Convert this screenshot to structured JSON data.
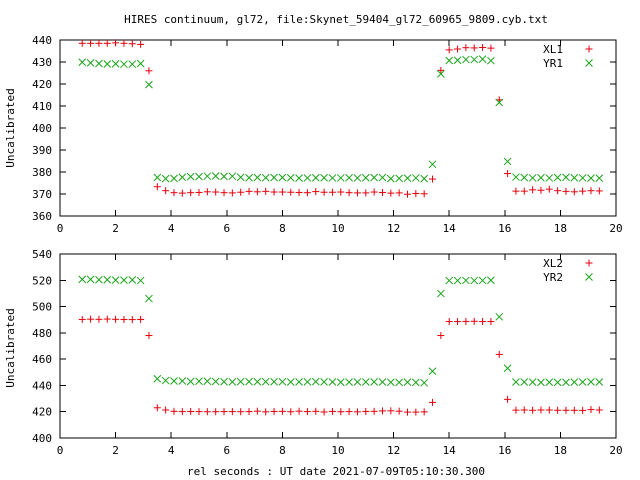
{
  "title": "HIRES continuum, gl72, file:Skynet_59404_gl72_60965_9809.cyb.txt",
  "xlabel": "rel seconds : UT date 2021-07-09T05:10:30.300",
  "colors": {
    "red": "#e8000b",
    "green": "#1aa51a"
  },
  "chart_data": [
    {
      "type": "scatter",
      "title": "HIRES continuum, gl72, file:Skynet_59404_gl72_60965_9809.cyb.txt",
      "xlabel": "",
      "ylabel": "Uncalibrated",
      "xlim": [
        0,
        20
      ],
      "ylim": [
        360,
        440
      ],
      "xticks": [
        0,
        2,
        4,
        6,
        8,
        10,
        12,
        14,
        16,
        18,
        20
      ],
      "yticks": [
        360,
        370,
        380,
        390,
        400,
        410,
        420,
        430,
        440
      ],
      "grid": false,
      "legend": "top-right",
      "series": [
        {
          "name": "XL1",
          "marker": "plus",
          "color": "#e8000b",
          "x": [
            0.8,
            1.1,
            1.4,
            1.7,
            2.0,
            2.3,
            2.6,
            2.9,
            3.2,
            3.5,
            3.8,
            4.1,
            4.4,
            4.7,
            5.0,
            5.3,
            5.6,
            5.9,
            6.2,
            6.5,
            6.8,
            7.1,
            7.4,
            7.7,
            8.0,
            8.3,
            8.6,
            8.9,
            9.2,
            9.5,
            9.8,
            10.1,
            10.4,
            10.7,
            11.0,
            11.3,
            11.6,
            11.9,
            12.2,
            12.5,
            12.8,
            13.1,
            13.4,
            13.7,
            14.0,
            14.3,
            14.6,
            14.9,
            15.2,
            15.5,
            15.8,
            16.1,
            16.4,
            16.7,
            17.0,
            17.3,
            17.6,
            17.9,
            18.2,
            18.5,
            18.8,
            19.1,
            19.4
          ],
          "y": [
            438.5,
            438.5,
            438.5,
            438.5,
            438.7,
            438.5,
            438.3,
            438.0,
            426.0,
            373.3,
            371.5,
            370.6,
            370.4,
            370.6,
            370.7,
            371.0,
            370.9,
            370.6,
            370.5,
            370.8,
            371.2,
            371.0,
            371.2,
            370.9,
            370.9,
            370.8,
            370.7,
            370.6,
            371.1,
            370.8,
            370.8,
            370.9,
            370.6,
            370.5,
            370.5,
            370.9,
            370.7,
            370.4,
            370.5,
            369.9,
            370.2,
            370.1,
            376.8,
            426.2,
            435.5,
            435.9,
            436.5,
            436.4,
            436.6,
            436.3,
            412.8,
            379.3,
            371.3,
            371.3,
            371.9,
            371.7,
            372.2,
            371.5,
            371.2,
            371.0,
            371.3,
            371.5,
            371.4
          ]
        },
        {
          "name": "YR1",
          "marker": "cross",
          "color": "#1aa51a",
          "x": [
            0.8,
            1.1,
            1.4,
            1.7,
            2.0,
            2.3,
            2.6,
            2.9,
            3.2,
            3.5,
            3.8,
            4.1,
            4.4,
            4.7,
            5.0,
            5.3,
            5.6,
            5.9,
            6.2,
            6.5,
            6.8,
            7.1,
            7.4,
            7.7,
            8.0,
            8.3,
            8.6,
            8.9,
            9.2,
            9.5,
            9.8,
            10.1,
            10.4,
            10.7,
            11.0,
            11.3,
            11.6,
            11.9,
            12.2,
            12.5,
            12.8,
            13.1,
            13.4,
            13.7,
            14.0,
            14.3,
            14.6,
            14.9,
            15.2,
            15.5,
            15.8,
            16.1,
            16.4,
            16.7,
            17.0,
            17.3,
            17.6,
            17.9,
            18.2,
            18.5,
            18.8,
            19.1,
            19.4
          ],
          "y": [
            429.9,
            429.6,
            429.3,
            429.1,
            429.2,
            429.0,
            429.0,
            429.3,
            419.7,
            377.5,
            377.0,
            377.1,
            377.6,
            377.9,
            377.9,
            378.1,
            378.2,
            378.0,
            378.1,
            377.6,
            377.4,
            377.5,
            377.4,
            377.5,
            377.5,
            377.4,
            377.2,
            377.3,
            377.4,
            377.4,
            377.3,
            377.3,
            377.4,
            377.3,
            377.4,
            377.5,
            377.5,
            377.0,
            377.1,
            377.2,
            377.3,
            377.0,
            383.5,
            424.6,
            430.7,
            430.8,
            431.1,
            431.1,
            431.3,
            430.6,
            411.6,
            384.8,
            377.7,
            377.5,
            377.3,
            377.4,
            377.3,
            377.5,
            377.6,
            377.4,
            377.3,
            377.2,
            377.2
          ]
        }
      ]
    },
    {
      "type": "scatter",
      "title": "",
      "xlabel": "rel seconds : UT date 2021-07-09T05:10:30.300",
      "ylabel": "Uncalibrated",
      "xlim": [
        0,
        20
      ],
      "ylim": [
        400,
        540
      ],
      "xticks": [
        0,
        2,
        4,
        6,
        8,
        10,
        12,
        14,
        16,
        18,
        20
      ],
      "yticks": [
        400,
        420,
        440,
        460,
        480,
        500,
        520,
        540
      ],
      "grid": false,
      "legend": "top-right",
      "series": [
        {
          "name": "XL2",
          "marker": "plus",
          "color": "#e8000b",
          "x": [
            0.8,
            1.1,
            1.4,
            1.7,
            2.0,
            2.3,
            2.6,
            2.9,
            3.2,
            3.5,
            3.8,
            4.1,
            4.4,
            4.7,
            5.0,
            5.3,
            5.6,
            5.9,
            6.2,
            6.5,
            6.8,
            7.1,
            7.4,
            7.7,
            8.0,
            8.3,
            8.6,
            8.9,
            9.2,
            9.5,
            9.8,
            10.1,
            10.4,
            10.7,
            11.0,
            11.3,
            11.6,
            11.9,
            12.2,
            12.5,
            12.8,
            13.1,
            13.4,
            13.7,
            14.0,
            14.3,
            14.6,
            14.9,
            15.2,
            15.5,
            15.8,
            16.1,
            16.4,
            16.7,
            17.0,
            17.3,
            17.6,
            17.9,
            18.2,
            18.5,
            18.8,
            19.1,
            19.4
          ],
          "y": [
            490.2,
            490.4,
            490.3,
            490.5,
            490.3,
            490.2,
            490.1,
            490.2,
            478.0,
            423.0,
            421.3,
            420.3,
            420.1,
            420.2,
            420.1,
            420.0,
            420.0,
            420.1,
            420.1,
            420.0,
            420.1,
            420.4,
            419.9,
            420.2,
            420.3,
            420.0,
            420.4,
            420.1,
            420.3,
            419.8,
            420.2,
            420.0,
            420.1,
            419.9,
            420.2,
            420.3,
            420.6,
            420.7,
            420.4,
            419.7,
            419.7,
            419.9,
            427.1,
            478.0,
            488.6,
            488.6,
            488.7,
            488.8,
            488.6,
            488.6,
            463.6,
            429.4,
            421.2,
            421.3,
            421.1,
            421.3,
            421.3,
            421.1,
            421.1,
            421.1,
            421.0,
            421.6,
            421.3
          ]
        },
        {
          "name": "YR2",
          "marker": "cross",
          "color": "#1aa51a",
          "x": [
            0.8,
            1.1,
            1.4,
            1.7,
            2.0,
            2.3,
            2.6,
            2.9,
            3.2,
            3.5,
            3.8,
            4.1,
            4.4,
            4.7,
            5.0,
            5.3,
            5.6,
            5.9,
            6.2,
            6.5,
            6.8,
            7.1,
            7.4,
            7.7,
            8.0,
            8.3,
            8.6,
            8.9,
            9.2,
            9.5,
            9.8,
            10.1,
            10.4,
            10.7,
            11.0,
            11.3,
            11.6,
            11.9,
            12.2,
            12.5,
            12.8,
            13.1,
            13.4,
            13.7,
            14.0,
            14.3,
            14.6,
            14.9,
            15.2,
            15.5,
            15.8,
            16.1,
            16.4,
            16.7,
            17.0,
            17.3,
            17.6,
            17.9,
            18.2,
            18.5,
            18.8,
            19.1,
            19.4
          ],
          "y": [
            520.7,
            520.7,
            520.4,
            520.4,
            520.1,
            520.1,
            520.3,
            519.8,
            506.1,
            445.1,
            443.7,
            443.4,
            443.4,
            443.0,
            443.2,
            443.2,
            443.0,
            442.8,
            442.7,
            442.9,
            442.9,
            442.8,
            442.8,
            442.8,
            442.8,
            442.6,
            442.7,
            442.7,
            442.9,
            442.7,
            442.6,
            442.4,
            442.5,
            442.6,
            442.6,
            442.7,
            442.6,
            442.4,
            442.3,
            442.5,
            442.3,
            442.0,
            450.8,
            509.9,
            519.8,
            519.8,
            519.9,
            519.8,
            519.9,
            520.0,
            492.2,
            453.1,
            442.6,
            442.6,
            442.5,
            442.3,
            442.4,
            442.3,
            442.3,
            442.5,
            442.6,
            442.7,
            442.6
          ]
        }
      ]
    }
  ]
}
